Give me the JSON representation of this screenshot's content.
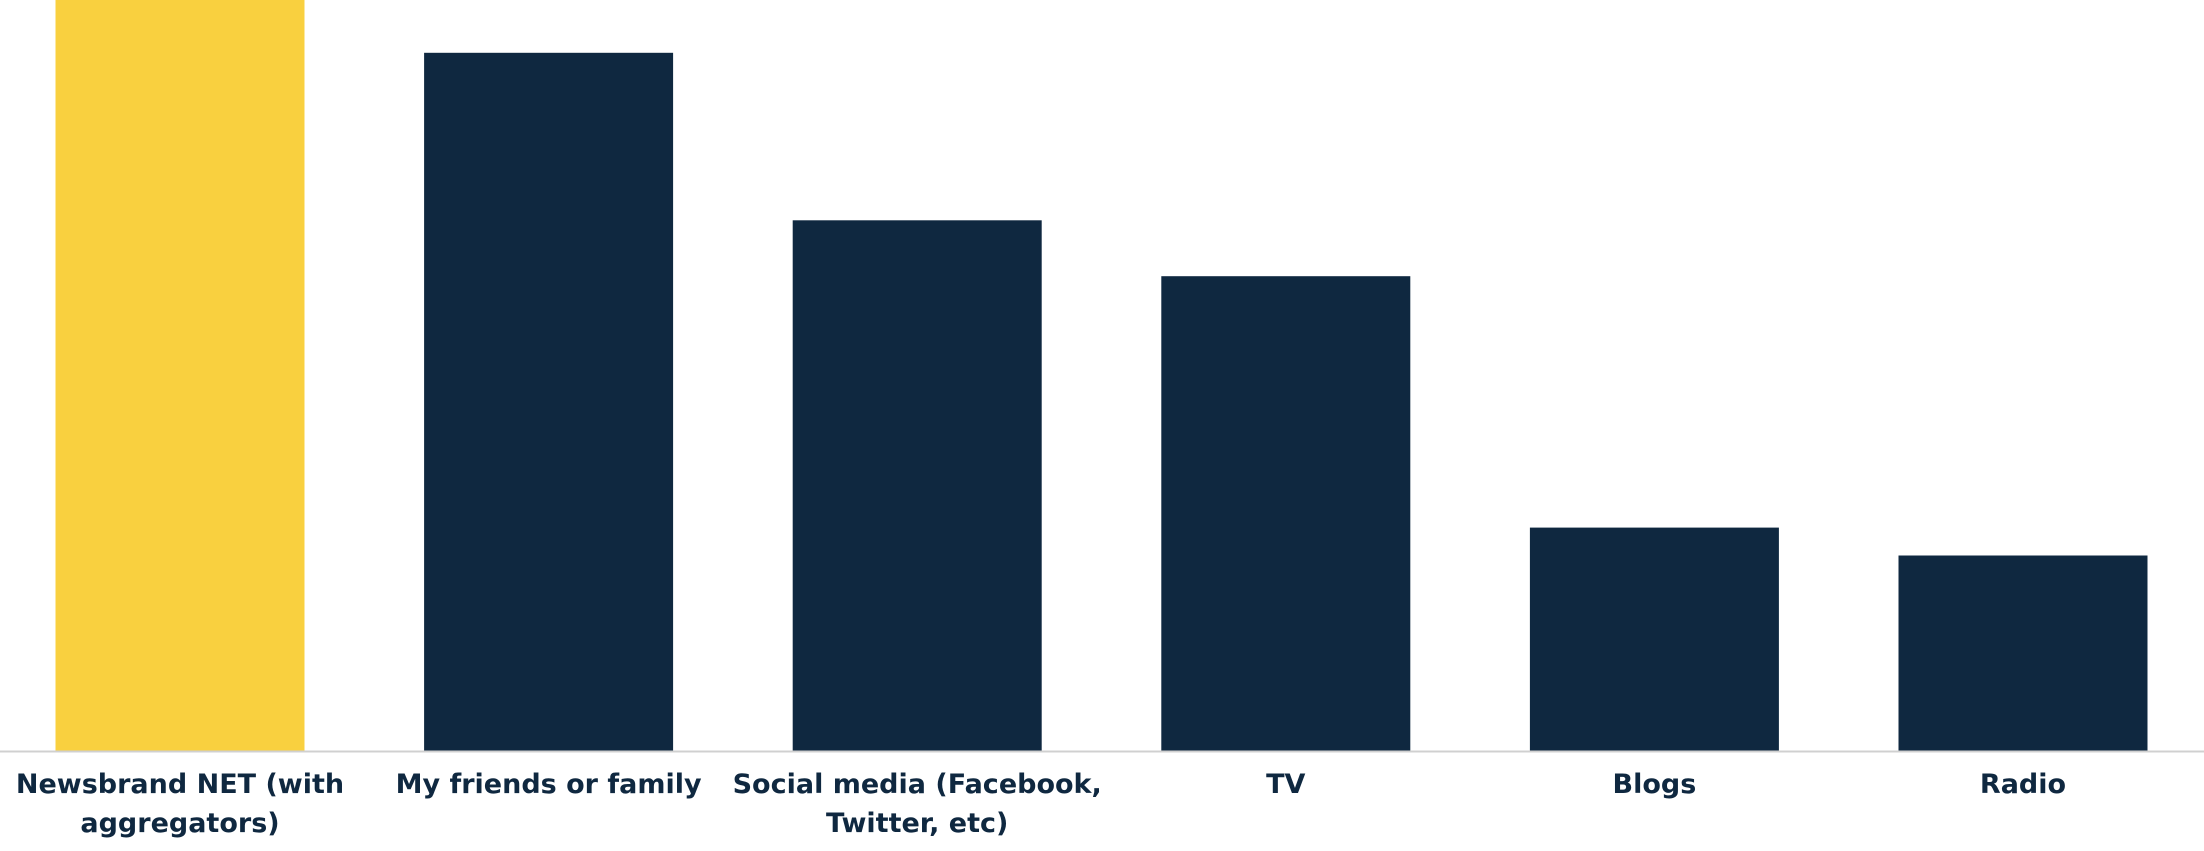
{
  "chart_data": {
    "type": "bar",
    "categories": [
      [
        "Newsbrand NET (with",
        "aggregators)"
      ],
      [
        "My friends or family"
      ],
      [
        "Social media (Facebook,",
        "Twitter, etc)"
      ],
      [
        "TV"
      ],
      [
        "Blogs"
      ],
      [
        "Radio"
      ]
    ],
    "values": [
      100,
      75,
      57,
      51,
      24,
      21
    ],
    "ylim": [
      0,
      100
    ],
    "highlight_index": 0,
    "colors": {
      "highlight": "#f9d03f",
      "default": "#0f2840",
      "axis": "#d0d0d0",
      "label": "#0f2840"
    },
    "title": "",
    "xlabel": "",
    "ylabel": "",
    "grid": false,
    "legend": "none"
  }
}
